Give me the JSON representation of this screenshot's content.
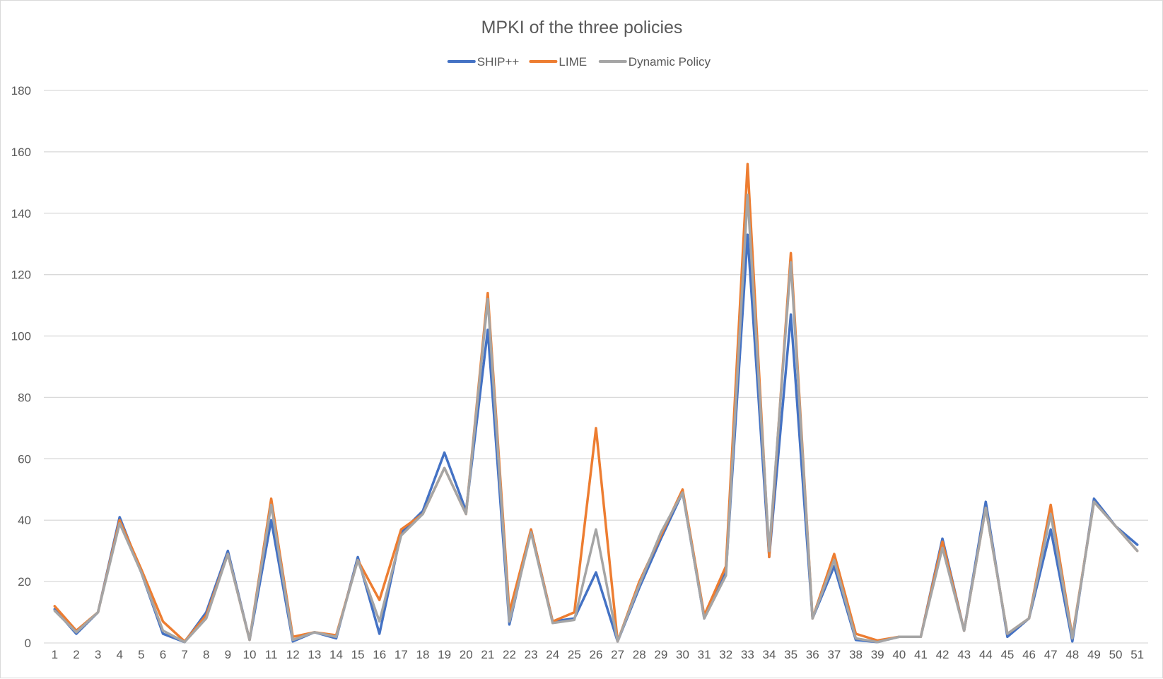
{
  "chart_data": {
    "type": "line",
    "title": "MPKI of the three policies",
    "xlabel": "",
    "ylabel": "",
    "ylim": [
      0,
      180
    ],
    "yticks": [
      "0",
      "20",
      "40",
      "60",
      "80",
      "100",
      "120",
      "140",
      "160",
      "180"
    ],
    "categories": [
      "1",
      "2",
      "3",
      "4",
      "5",
      "6",
      "7",
      "8",
      "9",
      "10",
      "11",
      "12",
      "13",
      "14",
      "15",
      "16",
      "17",
      "18",
      "19",
      "20",
      "21",
      "22",
      "23",
      "24",
      "25",
      "26",
      "27",
      "28",
      "29",
      "30",
      "31",
      "32",
      "33",
      "34",
      "35",
      "36",
      "37",
      "38",
      "39",
      "40",
      "41",
      "42",
      "43",
      "44",
      "45",
      "46",
      "47",
      "48",
      "49",
      "50",
      "51"
    ],
    "grid": true,
    "legend_position": "top",
    "series": [
      {
        "name": "SHIP++",
        "color": "#4472C4",
        "values": [
          11,
          3,
          10,
          41,
          23,
          3,
          0.3,
          10,
          30,
          1,
          40,
          0.5,
          3.5,
          1.5,
          28,
          3,
          36,
          43,
          62,
          43,
          102,
          6,
          37,
          7,
          8,
          23,
          0.5,
          18,
          34,
          49,
          8,
          23,
          133,
          28,
          107,
          8,
          25,
          1,
          0.3,
          2,
          2,
          34,
          4,
          46,
          2,
          8,
          37,
          0.5,
          47,
          38,
          32
        ]
      },
      {
        "name": "LIME",
        "color": "#ED7D31",
        "values": [
          12,
          4,
          10,
          40,
          24,
          7,
          0.5,
          9,
          29,
          1,
          47,
          2,
          3.5,
          2.5,
          27,
          14,
          37,
          42,
          57,
          42,
          114,
          10,
          37,
          7,
          10,
          70,
          0.5,
          20,
          35,
          50,
          9,
          25,
          156,
          28,
          127,
          8,
          29,
          3,
          0.8,
          2,
          2,
          33,
          4,
          44,
          3,
          8,
          45,
          2,
          46,
          38,
          30
        ]
      },
      {
        "name": "Dynamic Policy",
        "color": "#A5A5A5",
        "values": [
          10.5,
          3.5,
          10,
          39,
          23,
          4,
          0.3,
          8,
          29,
          1,
          45,
          1,
          3.5,
          2,
          27,
          7,
          35,
          42,
          57,
          42,
          112,
          7,
          36,
          6.5,
          7.5,
          37,
          0.5,
          19,
          36,
          49,
          8,
          22,
          146,
          30,
          124,
          8,
          27,
          1.5,
          0.3,
          2,
          2,
          31,
          4,
          44,
          3,
          8,
          42,
          1.5,
          46,
          38,
          30
        ]
      }
    ]
  }
}
